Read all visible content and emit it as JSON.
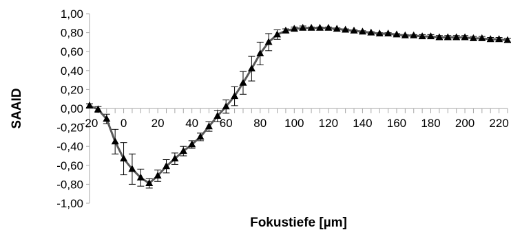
{
  "chart_data": {
    "type": "line",
    "xlabel": "Fokustiefe [µm]",
    "ylabel": "SAAID",
    "xlim": [
      -20,
      225
    ],
    "ylim": [
      -1.0,
      1.0
    ],
    "x_ticks": [
      -20,
      0,
      20,
      40,
      60,
      80,
      100,
      120,
      140,
      160,
      180,
      200,
      220
    ],
    "x_tick_labels": [
      "-20",
      "0",
      "20",
      "40",
      "60",
      "80",
      "100",
      "120",
      "140",
      "160",
      "180",
      "200",
      "220"
    ],
    "y_ticks": [
      1.0,
      0.8,
      0.6,
      0.4,
      0.2,
      0.0,
      -0.2,
      -0.4,
      -0.6,
      -0.8,
      -1.0
    ],
    "y_tick_labels": [
      "1,00",
      "0,80",
      "0,60",
      "0,40",
      "0,20",
      "0,00",
      "-0,20",
      "-0,40",
      "-0,60",
      "-0,80",
      "-1,00"
    ],
    "grid": false,
    "colors": {
      "line": "#595959",
      "marker": "#000000",
      "axis": "#a6a6a6",
      "error_bar": "#000000"
    },
    "series": [
      {
        "marker": "triangle",
        "x": [
          -20,
          -15,
          -10,
          -5,
          0,
          5,
          10,
          15,
          20,
          25,
          30,
          35,
          40,
          45,
          50,
          55,
          60,
          65,
          70,
          75,
          80,
          85,
          90,
          95,
          100,
          105,
          110,
          115,
          120,
          125,
          130,
          135,
          140,
          145,
          150,
          155,
          160,
          165,
          170,
          175,
          180,
          185,
          190,
          195,
          200,
          205,
          210,
          215,
          220,
          225
        ],
        "y": [
          0.03,
          -0.01,
          -0.11,
          -0.35,
          -0.53,
          -0.64,
          -0.73,
          -0.79,
          -0.71,
          -0.61,
          -0.53,
          -0.45,
          -0.38,
          -0.3,
          -0.19,
          -0.08,
          0.02,
          0.13,
          0.27,
          0.42,
          0.58,
          0.7,
          0.78,
          0.82,
          0.84,
          0.85,
          0.85,
          0.85,
          0.85,
          0.84,
          0.83,
          0.82,
          0.81,
          0.8,
          0.79,
          0.79,
          0.78,
          0.77,
          0.77,
          0.76,
          0.76,
          0.75,
          0.75,
          0.75,
          0.75,
          0.74,
          0.74,
          0.73,
          0.73,
          0.72
        ],
        "error": [
          0.02,
          0.03,
          0.05,
          0.13,
          0.17,
          0.16,
          0.09,
          0.05,
          0.06,
          0.07,
          0.06,
          0.05,
          0.04,
          0.04,
          0.05,
          0.06,
          0.07,
          0.1,
          0.12,
          0.13,
          0.12,
          0.09,
          0.05,
          0.02,
          0.02,
          0.02,
          0.01,
          0.01,
          0.01,
          0.01,
          0.01,
          0.01,
          0.01,
          0.01,
          0.01,
          0.01,
          0.01,
          0.01,
          0.01,
          0.02,
          0.02,
          0.02,
          0.02,
          0.02,
          0.02,
          0.02,
          0.02,
          0.02,
          0.02,
          0.02
        ]
      }
    ]
  }
}
